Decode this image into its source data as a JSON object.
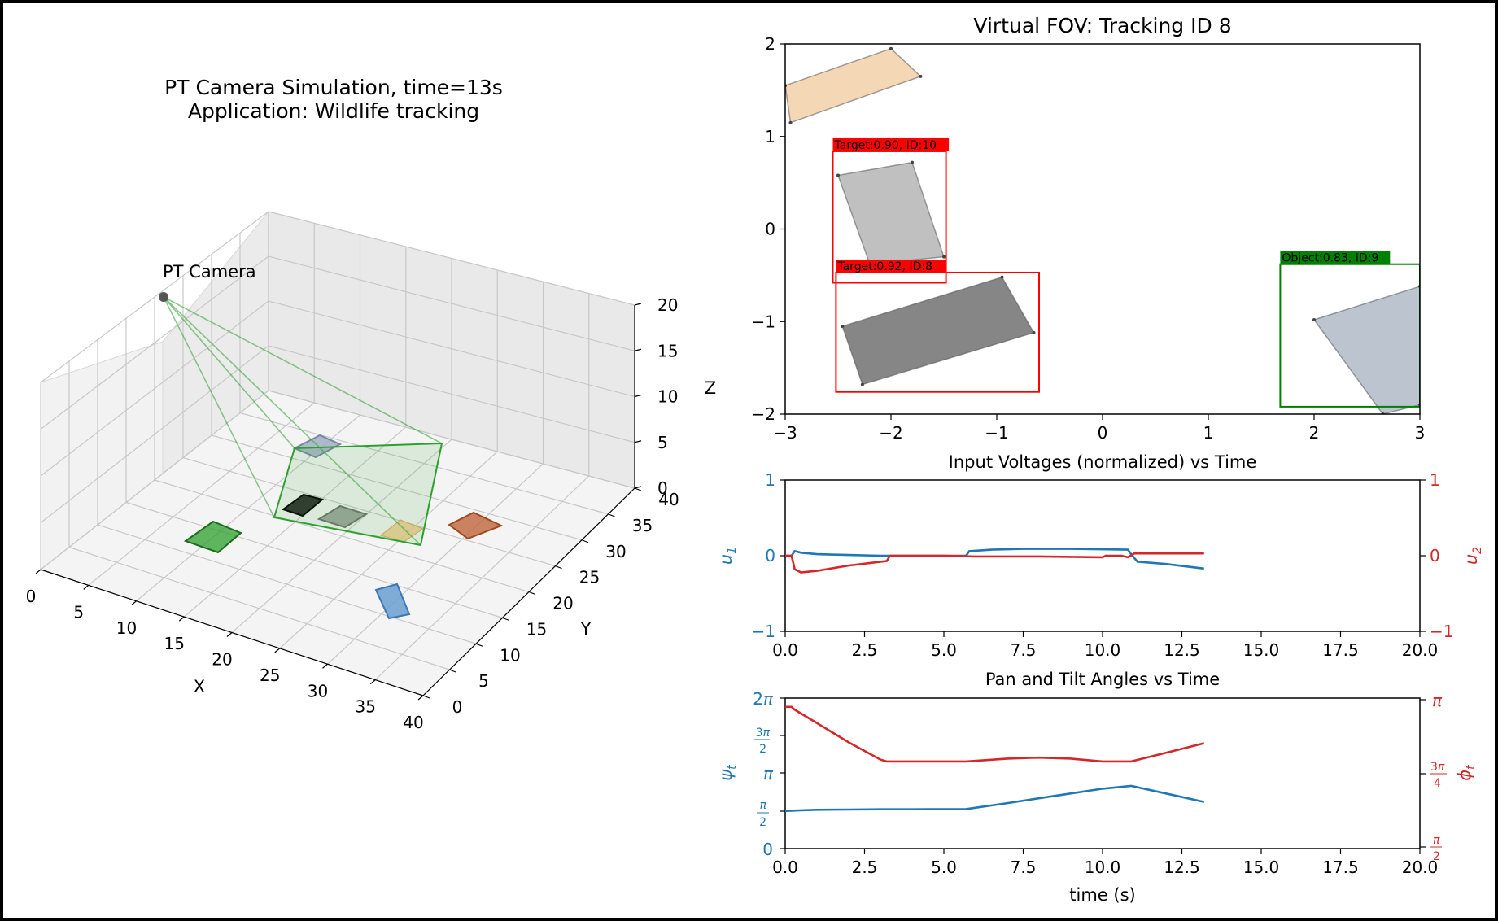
{
  "sim3d": {
    "title_line1": "PT Camera Simulation, time=13s",
    "title_line2": "Application: Wildlife tracking",
    "camera_label": "PT Camera",
    "xlabel": "X",
    "ylabel": "Y",
    "zlabel": "Z",
    "x_ticks": [
      "0",
      "5",
      "10",
      "15",
      "20",
      "25",
      "30",
      "35",
      "40"
    ],
    "y_ticks": [
      "0",
      "5",
      "10",
      "15",
      "20",
      "25",
      "30",
      "35",
      "40"
    ],
    "z_ticks": [
      "0",
      "5",
      "10",
      "15",
      "20"
    ],
    "colors": {
      "fov": "#2ca02c",
      "camera": "#555555"
    }
  },
  "chart_data": [
    {
      "type": "scatter",
      "title": "Virtual FOV: Tracking ID 8",
      "xlim": [
        -3,
        3
      ],
      "ylim": [
        -2,
        2
      ],
      "x_ticks": [
        "−3",
        "−2",
        "−1",
        "0",
        "1",
        "2",
        "3"
      ],
      "y_ticks": [
        "−2",
        "−1",
        "0",
        "1",
        "2"
      ],
      "objects": [
        {
          "kind": "polygon",
          "color": "#f3d5b0",
          "points": [
            [
              -3.0,
              1.55
            ],
            [
              -2.0,
              1.95
            ],
            [
              -1.72,
              1.65
            ],
            [
              -2.95,
              1.15
            ]
          ]
        },
        {
          "kind": "polygon",
          "color": "#bdbdbd",
          "points": [
            [
              -2.5,
              0.58
            ],
            [
              -1.8,
              0.72
            ],
            [
              -1.5,
              -0.3
            ],
            [
              -2.2,
              -0.38
            ]
          ]
        },
        {
          "kind": "polygon",
          "color": "#808080",
          "points": [
            [
              -2.46,
              -1.05
            ],
            [
              -0.95,
              -0.52
            ],
            [
              -0.65,
              -1.12
            ],
            [
              -2.27,
              -1.68
            ]
          ]
        },
        {
          "kind": "polygon",
          "color": "#b8c1cc",
          "points": [
            [
              2.0,
              -0.98
            ],
            [
              3.0,
              -0.62
            ],
            [
              3.0,
              -1.9
            ],
            [
              2.65,
              -2.0
            ]
          ]
        }
      ],
      "boxes": [
        {
          "label": "Target:0.90, ID:10",
          "color": "#ff0000",
          "x0": -2.55,
          "y0": -0.58,
          "x1": -1.48,
          "y1": 0.84
        },
        {
          "label": "Target:0.92, ID:8",
          "color": "#ff0000",
          "x0": -2.52,
          "y0": -1.76,
          "x1": -0.6,
          "y1": -0.47
        },
        {
          "label": "Object:0.83, ID:9",
          "color": "#008000",
          "x0": 1.68,
          "y0": -1.92,
          "x1": 3.0,
          "y1": -0.38
        }
      ]
    },
    {
      "type": "line",
      "title": "Input Voltages (normalized) vs Time",
      "xlim": [
        0,
        20
      ],
      "ylim": [
        -1,
        1
      ],
      "x_ticks": [
        "0.0",
        "2.5",
        "5.0",
        "7.5",
        "10.0",
        "12.5",
        "15.0",
        "17.5",
        "20.0"
      ],
      "y_ticks": [
        "−1",
        "0",
        "1"
      ],
      "y2_ticks": [
        "−1",
        "0",
        "1"
      ],
      "series": [
        {
          "name": "u1",
          "axis": "left",
          "color": "#1f77b4",
          "x": [
            0,
            0.2,
            0.3,
            0.5,
            1.0,
            2.0,
            3.0,
            4.0,
            5.0,
            5.7,
            5.8,
            6.5,
            7.5,
            9.0,
            10.8,
            10.9,
            11.1,
            12.0,
            13.2
          ],
          "y": [
            0,
            0,
            0.06,
            0.04,
            0.02,
            0.01,
            0.0,
            0.0,
            0.0,
            0.0,
            0.06,
            0.08,
            0.09,
            0.09,
            0.08,
            0.02,
            -0.08,
            -0.11,
            -0.17
          ]
        },
        {
          "name": "u2",
          "axis": "right",
          "color": "#d62728",
          "x": [
            0,
            0.2,
            0.3,
            0.5,
            1.0,
            2.0,
            3.0,
            3.2,
            3.3,
            5.0,
            6.0,
            8.0,
            10.0,
            10.1,
            10.6,
            10.8,
            11.0,
            13.2
          ],
          "y": [
            0,
            0,
            -0.18,
            -0.22,
            -0.2,
            -0.13,
            -0.08,
            -0.07,
            0.0,
            0.0,
            -0.01,
            -0.01,
            -0.02,
            0.0,
            0.0,
            -0.02,
            0.03,
            0.03
          ]
        }
      ]
    },
    {
      "type": "line",
      "title": "Pan and Tilt Angles vs Time",
      "xlabel": "time (s)",
      "xlim": [
        0,
        20
      ],
      "x_ticks": [
        "0.0",
        "2.5",
        "5.0",
        "7.5",
        "10.0",
        "12.5",
        "15.0",
        "17.5",
        "20.0"
      ],
      "y_range_rad": [
        0,
        6.2832
      ],
      "y2_range_rad": [
        1.5708,
        3.1416
      ],
      "series": [
        {
          "name": "ψt",
          "axis": "left",
          "color": "#1f77b4",
          "x": [
            0,
            0.5,
            1.0,
            2.0,
            3.0,
            4.0,
            5.7,
            7.0,
            8.5,
            10.0,
            10.9,
            12.0,
            13.2
          ],
          "y": [
            1.57,
            1.6,
            1.62,
            1.63,
            1.64,
            1.64,
            1.65,
            1.9,
            2.2,
            2.5,
            2.62,
            2.3,
            1.95
          ]
        },
        {
          "name": "φt",
          "axis": "right",
          "color": "#d62728",
          "x": [
            0,
            0.2,
            0.3,
            1.0,
            2.0,
            3.0,
            3.2,
            5.7,
            7.0,
            8.0,
            9.0,
            10.0,
            10.9,
            12.0,
            13.2
          ],
          "y": [
            3.05,
            3.05,
            3.02,
            2.88,
            2.68,
            2.5,
            2.48,
            2.48,
            2.51,
            2.52,
            2.51,
            2.48,
            2.48,
            2.57,
            2.67
          ]
        }
      ]
    }
  ]
}
